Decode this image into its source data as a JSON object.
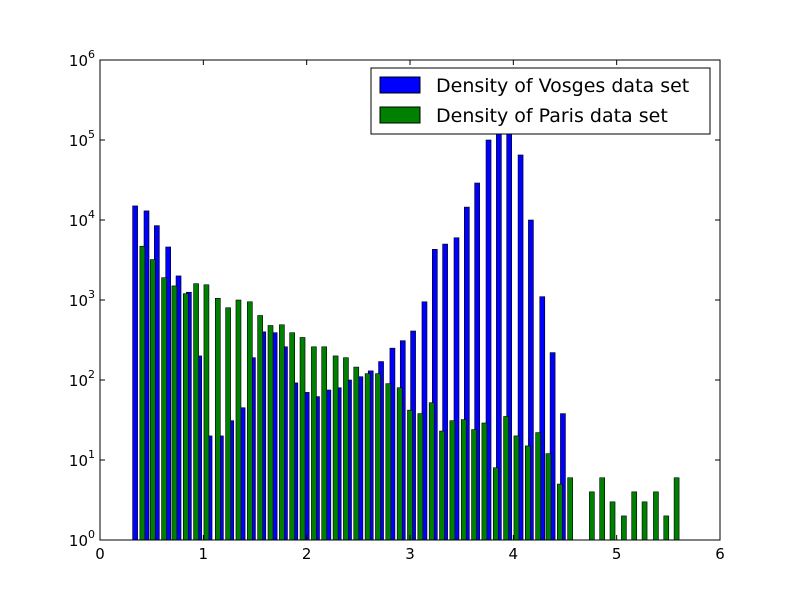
{
  "chart_data": {
    "type": "bar",
    "title": "",
    "xlabel": "",
    "ylabel": "",
    "xlim": [
      0,
      6
    ],
    "ylim": [
      1,
      1000000
    ],
    "yscale": "log",
    "grid": false,
    "legend_position": "top-right",
    "x_ticks": [
      "0",
      "1",
      "2",
      "3",
      "4",
      "5",
      "6"
    ],
    "y_ticks": [
      {
        "base": "10",
        "exp": "0"
      },
      {
        "base": "10",
        "exp": "1"
      },
      {
        "base": "10",
        "exp": "2"
      },
      {
        "base": "10",
        "exp": "3"
      },
      {
        "base": "10",
        "exp": "4"
      },
      {
        "base": "10",
        "exp": "5"
      },
      {
        "base": "10",
        "exp": "6"
      }
    ],
    "series": [
      {
        "name": "Density of Vosges data set",
        "color": "#0000ff",
        "values": [
          [
            0.34,
            15000
          ],
          [
            0.45,
            13000
          ],
          [
            0.55,
            8500
          ],
          [
            0.66,
            4600
          ],
          [
            0.76,
            2000
          ],
          [
            0.86,
            1250
          ],
          [
            0.96,
            200
          ],
          [
            1.06,
            20
          ],
          [
            1.17,
            20
          ],
          [
            1.27,
            31
          ],
          [
            1.38,
            45
          ],
          [
            1.48,
            190
          ],
          [
            1.58,
            400
          ],
          [
            1.69,
            390
          ],
          [
            1.79,
            260
          ],
          [
            1.89,
            92
          ],
          [
            2.0,
            70
          ],
          [
            2.1,
            62
          ],
          [
            2.21,
            75
          ],
          [
            2.31,
            80
          ],
          [
            2.41,
            100
          ],
          [
            2.52,
            110
          ],
          [
            2.62,
            130
          ],
          [
            2.72,
            170
          ],
          [
            2.83,
            250
          ],
          [
            2.93,
            310
          ],
          [
            3.03,
            410
          ],
          [
            3.14,
            950
          ],
          [
            3.24,
            4300
          ],
          [
            3.34,
            5000
          ],
          [
            3.45,
            6000
          ],
          [
            3.55,
            14500
          ],
          [
            3.65,
            29000
          ],
          [
            3.76,
            100000
          ],
          [
            3.86,
            125000
          ],
          [
            3.96,
            125000
          ],
          [
            4.07,
            65000
          ],
          [
            4.17,
            10000
          ],
          [
            4.28,
            1100
          ],
          [
            4.38,
            220
          ],
          [
            4.48,
            38
          ]
        ]
      },
      {
        "name": "Density of Paris data set",
        "color": "#008000",
        "values": [
          [
            0.41,
            4700
          ],
          [
            0.51,
            3200
          ],
          [
            0.62,
            1900
          ],
          [
            0.72,
            1500
          ],
          [
            0.83,
            1200
          ],
          [
            0.93,
            1600
          ],
          [
            1.03,
            1550
          ],
          [
            1.14,
            1050
          ],
          [
            1.24,
            800
          ],
          [
            1.34,
            1000
          ],
          [
            1.45,
            950
          ],
          [
            1.55,
            640
          ],
          [
            1.65,
            480
          ],
          [
            1.76,
            490
          ],
          [
            1.86,
            390
          ],
          [
            1.96,
            340
          ],
          [
            2.07,
            260
          ],
          [
            2.17,
            260
          ],
          [
            2.28,
            200
          ],
          [
            2.38,
            190
          ],
          [
            2.48,
            145
          ],
          [
            2.59,
            120
          ],
          [
            2.69,
            120
          ],
          [
            2.79,
            90
          ],
          [
            2.9,
            80
          ],
          [
            3.0,
            42
          ],
          [
            3.1,
            38
          ],
          [
            3.21,
            52
          ],
          [
            3.31,
            23
          ],
          [
            3.41,
            31
          ],
          [
            3.52,
            32
          ],
          [
            3.62,
            24
          ],
          [
            3.72,
            29
          ],
          [
            3.83,
            8
          ],
          [
            3.93,
            35
          ],
          [
            4.03,
            20
          ],
          [
            4.14,
            15
          ],
          [
            4.24,
            22
          ],
          [
            4.34,
            12
          ],
          [
            4.45,
            5
          ],
          [
            4.55,
            6
          ],
          [
            4.65,
            0
          ],
          [
            4.76,
            4
          ],
          [
            4.86,
            6
          ],
          [
            4.96,
            3
          ],
          [
            5.07,
            2
          ],
          [
            5.17,
            4
          ],
          [
            5.27,
            3
          ],
          [
            5.38,
            4
          ],
          [
            5.48,
            2
          ],
          [
            5.58,
            6
          ]
        ]
      }
    ]
  }
}
